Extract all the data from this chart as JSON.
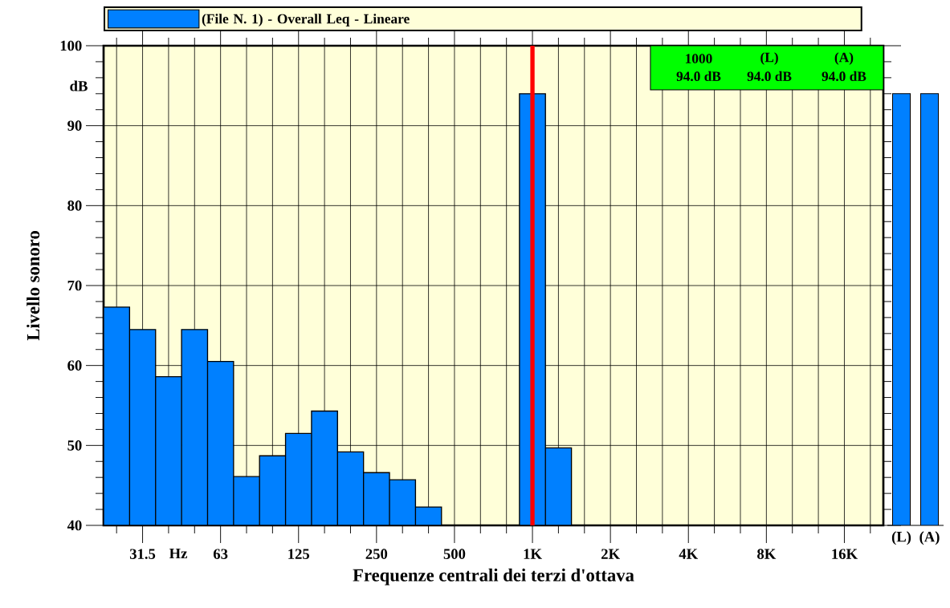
{
  "chart_data": [
    {
      "type": "bar",
      "xlabel": "Frequenze centrali dei terzi d'ottava",
      "ylabel": "Livello sonoro",
      "categories": [
        null,
        "31.5",
        null,
        null,
        "63",
        null,
        null,
        "125",
        null,
        null,
        "250",
        null,
        null,
        "500",
        null,
        null,
        "1K",
        null,
        null,
        "2K",
        null,
        null,
        "4K",
        null,
        null,
        "8K",
        null,
        null,
        "16K",
        null
      ],
      "series": [
        {
          "name": "(File N. 1) - Overall Leq - Lineare",
          "color": "#0080ff",
          "values": [
            67.3,
            64.5,
            58.6,
            64.5,
            60.5,
            46.1,
            48.7,
            51.5,
            54.3,
            49.2,
            46.6,
            45.7,
            42.3,
            40,
            40,
            40,
            94.0,
            49.7,
            40,
            40,
            40,
            40,
            40,
            40,
            40,
            40,
            40,
            40,
            40,
            40
          ]
        }
      ],
      "ylim": [
        40,
        100
      ],
      "yticks": [
        40,
        {
          "value": 42,
          "label": null
        },
        {
          "value": 44,
          "label": null
        },
        {
          "value": 46,
          "label": null
        },
        {
          "value": 48,
          "label": null
        },
        50,
        {
          "value": 52,
          "label": null
        },
        {
          "value": 54,
          "label": null
        },
        {
          "value": 56,
          "label": null
        },
        {
          "value": 58,
          "label": null
        },
        60,
        {
          "value": 62,
          "label": null
        },
        {
          "value": 64,
          "label": null
        },
        {
          "value": 66,
          "label": null
        },
        {
          "value": 68,
          "label": null
        },
        70,
        {
          "value": 72,
          "label": null
        },
        {
          "value": 74,
          "label": null
        },
        {
          "value": 76,
          "label": null
        },
        {
          "value": 78,
          "label": null
        },
        80,
        {
          "value": 82,
          "label": null
        },
        {
          "value": 84,
          "label": null
        },
        {
          "value": 86,
          "label": null
        },
        {
          "value": 88,
          "label": null
        },
        90,
        {
          "value": 92,
          "label": null
        },
        {
          "value": 94,
          "label": null
        },
        {
          "value": 96,
          "label": null
        },
        {
          "value": 98,
          "label": null
        },
        100
      ],
      "grid": true,
      "legend": "top",
      "ref_lines": [
        {
          "axis": "x",
          "value": "1K",
          "color": "#ff0000"
        }
      ],
      "annotations": [
        "Hz",
        "dB",
        "1000",
        "94.0 dB",
        "(L)",
        "94.0 dB",
        "(A)",
        "94.0 dB"
      ]
    },
    {
      "type": "bar",
      "categories": [
        "(L)",
        "(A)"
      ],
      "values": [
        94.0,
        94.0
      ],
      "color": "#0080ff",
      "ylim": [
        40,
        100
      ],
      "tick_labels": "x"
    }
  ]
}
